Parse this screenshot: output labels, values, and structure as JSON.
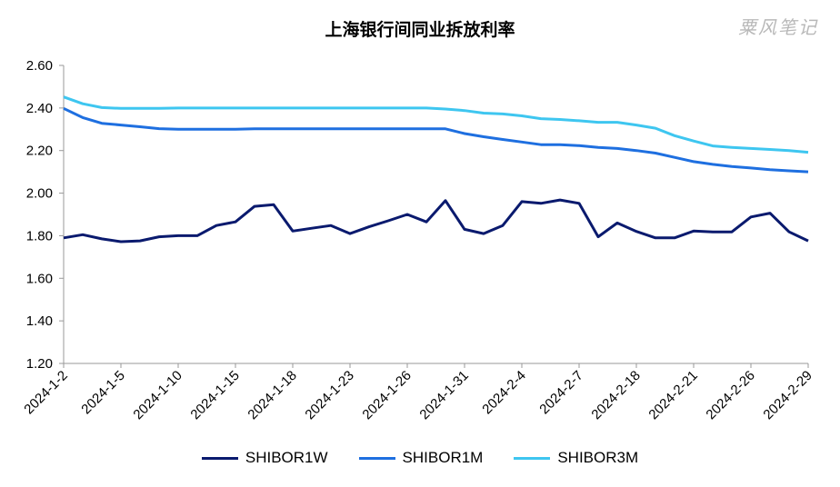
{
  "title": "上海银行间同业拆放利率",
  "watermark": "粟风笔记",
  "chart_data": {
    "type": "line",
    "title": "上海银行间同业拆放利率",
    "ylim": [
      1.2,
      2.6
    ],
    "yticks": [
      "1.20",
      "1.40",
      "1.60",
      "1.80",
      "2.00",
      "2.20",
      "2.40",
      "2.60"
    ],
    "grid": false,
    "legend_position": "bottom",
    "x_tick_labels": [
      "2024-1-2",
      "2024-1-5",
      "2024-1-10",
      "2024-1-15",
      "2024-1-18",
      "2024-1-23",
      "2024-1-26",
      "2024-1-31",
      "2024-2-4",
      "2024-2-7",
      "2024-2-18",
      "2024-2-21",
      "2024-2-26",
      "2024-2-29"
    ],
    "series": [
      {
        "name": "SHIBOR1W",
        "color": "#0a1a6e",
        "values": [
          1.79,
          1.805,
          1.785,
          1.772,
          1.776,
          1.795,
          1.8,
          1.8,
          1.848,
          1.865,
          1.938,
          1.946,
          1.822,
          1.835,
          1.848,
          1.81,
          1.842,
          1.87,
          1.9,
          1.865,
          1.965,
          1.83,
          1.81,
          1.848,
          1.96,
          1.952,
          1.968,
          1.952,
          1.795,
          1.86,
          1.82,
          1.79,
          1.79,
          1.822,
          1.818,
          1.818,
          1.888,
          1.906,
          1.818,
          1.776
        ]
      },
      {
        "name": "SHIBOR1M",
        "color": "#1e6fe0",
        "values": [
          2.398,
          2.355,
          2.328,
          2.32,
          2.312,
          2.303,
          2.3,
          2.3,
          2.3,
          2.3,
          2.302,
          2.302,
          2.302,
          2.302,
          2.302,
          2.302,
          2.302,
          2.302,
          2.302,
          2.302,
          2.302,
          2.28,
          2.265,
          2.252,
          2.24,
          2.228,
          2.228,
          2.223,
          2.215,
          2.21,
          2.2,
          2.188,
          2.168,
          2.148,
          2.135,
          2.125,
          2.118,
          2.11,
          2.105,
          2.1
        ]
      },
      {
        "name": "SHIBOR3M",
        "color": "#3ec6f0",
        "values": [
          2.452,
          2.42,
          2.402,
          2.398,
          2.398,
          2.398,
          2.4,
          2.4,
          2.4,
          2.4,
          2.4,
          2.4,
          2.4,
          2.4,
          2.4,
          2.4,
          2.4,
          2.4,
          2.4,
          2.4,
          2.395,
          2.388,
          2.376,
          2.372,
          2.363,
          2.35,
          2.346,
          2.34,
          2.333,
          2.333,
          2.32,
          2.305,
          2.27,
          2.245,
          2.222,
          2.215,
          2.21,
          2.205,
          2.2,
          2.192
        ]
      }
    ]
  }
}
